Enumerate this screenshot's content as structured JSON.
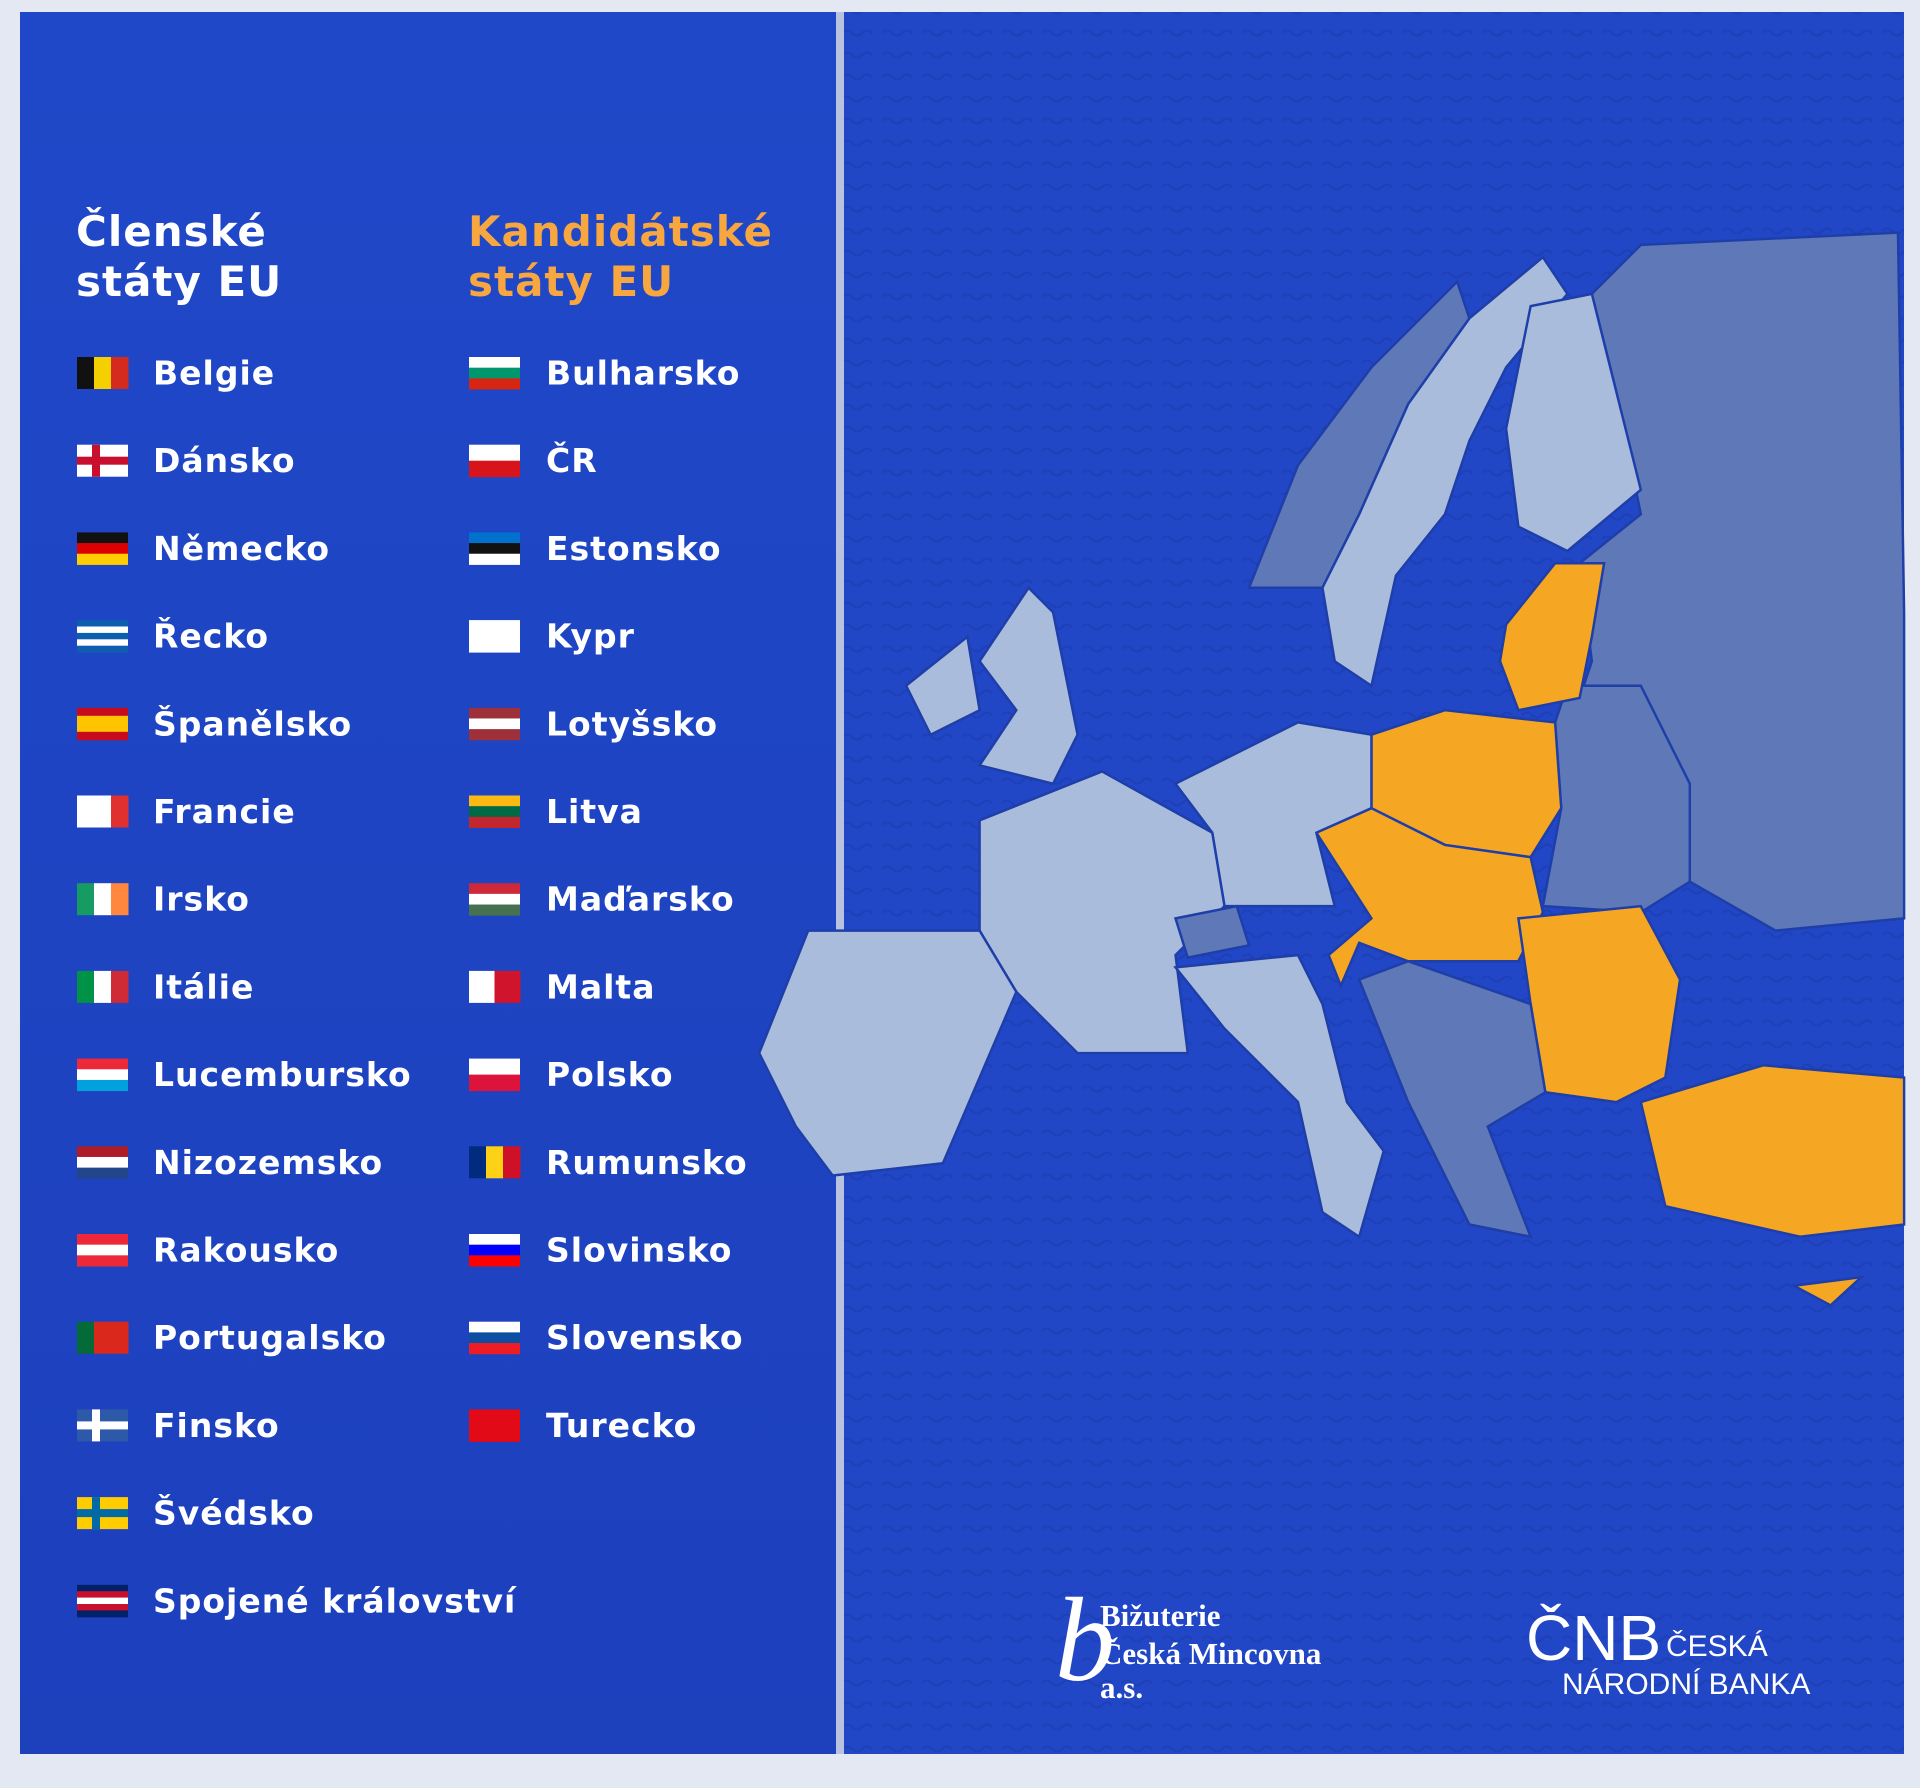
{
  "members": {
    "heading": [
      "Členské",
      "státy EU"
    ],
    "countries": [
      "Belgie",
      "Dánsko",
      "Německo",
      "Řecko",
      "Španělsko",
      "Francie",
      "Irsko",
      "Itálie",
      "Lucembursko",
      "Nizozemsko",
      "Rakousko",
      "Portugalsko",
      "Finsko",
      "Švédsko",
      "Spojené království"
    ]
  },
  "candidates": {
    "heading": [
      "Kandidátské",
      "státy EU"
    ],
    "countries": [
      "Bulharsko",
      "ČR",
      "Estonsko",
      "Kypr",
      "Lotyšsko",
      "Litva",
      "Maďarsko",
      "Malta",
      "Polsko",
      "Rumunsko",
      "Slovinsko",
      "Slovensko",
      "Turecko"
    ]
  },
  "logos": {
    "mint": [
      "Bižuterie",
      "Česká Mincovna",
      "a.s."
    ],
    "bank": {
      "abbr": "ČNB",
      "line1": "ČESKÁ",
      "line2": "NÁRODNÍ BANKA"
    }
  }
}
